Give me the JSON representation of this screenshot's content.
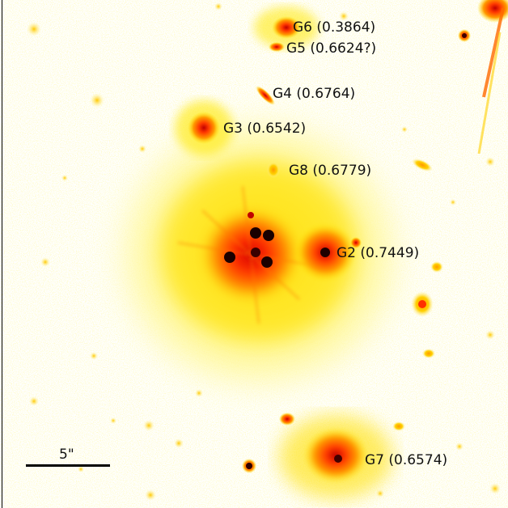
{
  "image": {
    "colormap": [
      "#ffffff",
      "#fff8b0",
      "#ffe800",
      "#ff9c00",
      "#ff3000",
      "#b00000",
      "#200000"
    ]
  },
  "labels": {
    "g6": "G6 (0.3864)",
    "g5": "G5 (0.6624?)",
    "g4": "G4 (0.6764)",
    "g3": "G3 (0.6542)",
    "g8": "G8 (0.6779)",
    "g2": "G2 (0.7449)",
    "g7": "G7 (0.6574)"
  },
  "scalebar": {
    "label": "5\""
  }
}
